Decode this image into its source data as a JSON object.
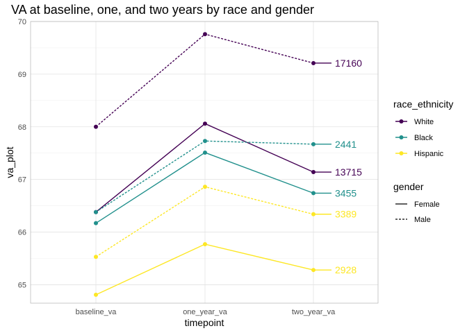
{
  "chart_data": {
    "type": "line",
    "title": "VA at baseline, one, and two years by race and gender",
    "xlabel": "timepoint",
    "ylabel": "va_plot",
    "categories": [
      "baseline_va",
      "one_year_va",
      "two_year_va"
    ],
    "ylim": [
      64.65,
      70.0
    ],
    "yticks": [
      65,
      66,
      67,
      68,
      69,
      70
    ],
    "grid": true,
    "legend_placement": "right",
    "series": [
      {
        "race": "White",
        "gender": "Male",
        "values": [
          68.0,
          69.76,
          69.21
        ],
        "label": "17160"
      },
      {
        "race": "White",
        "gender": "Female",
        "values": [
          66.38,
          68.06,
          67.14
        ],
        "label": "13715"
      },
      {
        "race": "Black",
        "gender": "Male",
        "values": [
          66.38,
          67.73,
          67.67
        ],
        "label": "2441"
      },
      {
        "race": "Black",
        "gender": "Female",
        "values": [
          66.17,
          67.51,
          66.74
        ],
        "label": "3455"
      },
      {
        "race": "Hispanic",
        "gender": "Male",
        "values": [
          65.53,
          66.86,
          66.34
        ],
        "label": "3389"
      },
      {
        "race": "Hispanic",
        "gender": "Female",
        "values": [
          64.81,
          65.77,
          65.28
        ],
        "label": "2928"
      }
    ],
    "legend": {
      "color_title": "race_ethnicity",
      "color_items": [
        {
          "name": "White",
          "color": "#440154"
        },
        {
          "name": "Black",
          "color": "#21908C"
        },
        {
          "name": "Hispanic",
          "color": "#FDE725"
        }
      ],
      "linetype_title": "gender",
      "linetype_items": [
        {
          "name": "Female",
          "style": "solid"
        },
        {
          "name": "Male",
          "style": "dashed"
        }
      ]
    }
  }
}
